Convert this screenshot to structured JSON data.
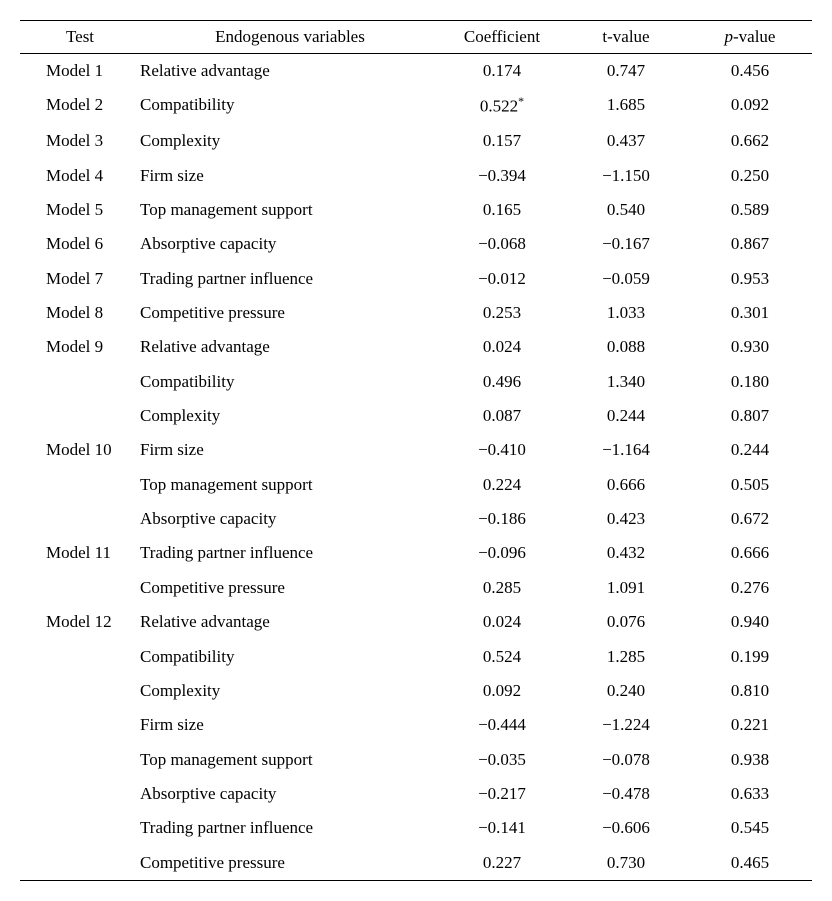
{
  "table": {
    "headers": {
      "test": "Test",
      "var": "Endogenous variables",
      "coef": "Coefficient",
      "tval": "t-value",
      "pval_pre": "p",
      "pval_post": "-value"
    },
    "rows": [
      {
        "test": "Model 1",
        "var": "Relative advantage",
        "coef": "0.174",
        "star": false,
        "tval": "0.747",
        "pval": "0.456"
      },
      {
        "test": "Model 2",
        "var": "Compatibility",
        "coef": "0.522",
        "star": true,
        "tval": "1.685",
        "pval": "0.092"
      },
      {
        "test": "Model 3",
        "var": "Complexity",
        "coef": "0.157",
        "star": false,
        "tval": "0.437",
        "pval": "0.662"
      },
      {
        "test": "Model 4",
        "var": "Firm size",
        "coef": "−0.394",
        "star": false,
        "tval": "−1.150",
        "pval": "0.250"
      },
      {
        "test": "Model 5",
        "var": "Top management support",
        "coef": "0.165",
        "star": false,
        "tval": "0.540",
        "pval": "0.589"
      },
      {
        "test": "Model 6",
        "var": "Absorptive capacity",
        "coef": "−0.068",
        "star": false,
        "tval": "−0.167",
        "pval": "0.867"
      },
      {
        "test": "Model 7",
        "var": "Trading partner influence",
        "coef": "−0.012",
        "star": false,
        "tval": "−0.059",
        "pval": "0.953"
      },
      {
        "test": "Model 8",
        "var": "Competitive pressure",
        "coef": "0.253",
        "star": false,
        "tval": "1.033",
        "pval": "0.301"
      },
      {
        "test": "Model 9",
        "var": "Relative advantage",
        "coef": "0.024",
        "star": false,
        "tval": "0.088",
        "pval": "0.930"
      },
      {
        "test": "",
        "var": "Compatibility",
        "coef": "0.496",
        "star": false,
        "tval": "1.340",
        "pval": "0.180"
      },
      {
        "test": "",
        "var": "Complexity",
        "coef": "0.087",
        "star": false,
        "tval": "0.244",
        "pval": "0.807"
      },
      {
        "test": "Model 10",
        "var": "Firm size",
        "coef": "−0.410",
        "star": false,
        "tval": "−1.164",
        "pval": "0.244"
      },
      {
        "test": "",
        "var": "Top management support",
        "coef": "0.224",
        "star": false,
        "tval": "0.666",
        "pval": "0.505"
      },
      {
        "test": "",
        "var": "Absorptive capacity",
        "coef": "−0.186",
        "star": false,
        "tval": "0.423",
        "pval": "0.672"
      },
      {
        "test": "Model 11",
        "var": "Trading partner influence",
        "coef": "−0.096",
        "star": false,
        "tval": "0.432",
        "pval": "0.666"
      },
      {
        "test": "",
        "var": "Competitive pressure",
        "coef": "0.285",
        "star": false,
        "tval": "1.091",
        "pval": "0.276"
      },
      {
        "test": "Model 12",
        "var": "Relative advantage",
        "coef": "0.024",
        "star": false,
        "tval": "0.076",
        "pval": "0.940"
      },
      {
        "test": "",
        "var": "Compatibility",
        "coef": "0.524",
        "star": false,
        "tval": "1.285",
        "pval": "0.199"
      },
      {
        "test": "",
        "var": "Complexity",
        "coef": "0.092",
        "star": false,
        "tval": "0.240",
        "pval": "0.810"
      },
      {
        "test": "",
        "var": "Firm size",
        "coef": "−0.444",
        "star": false,
        "tval": "−1.224",
        "pval": "0.221"
      },
      {
        "test": "",
        "var": "Top management support",
        "coef": "−0.035",
        "star": false,
        "tval": "−0.078",
        "pval": "0.938"
      },
      {
        "test": "",
        "var": "Absorptive capacity",
        "coef": "−0.217",
        "star": false,
        "tval": "−0.478",
        "pval": "0.633"
      },
      {
        "test": "",
        "var": "Trading partner influence",
        "coef": "−0.141",
        "star": false,
        "tval": "−0.606",
        "pval": "0.545"
      },
      {
        "test": "",
        "var": "Competitive pressure",
        "coef": "0.227",
        "star": false,
        "tval": "0.730",
        "pval": "0.465"
      }
    ],
    "star_symbol": "*",
    "colors": {
      "background": "#ffffff",
      "text": "#000000",
      "rule": "#000000"
    },
    "fontsize": 17,
    "font_family": "Times New Roman"
  }
}
